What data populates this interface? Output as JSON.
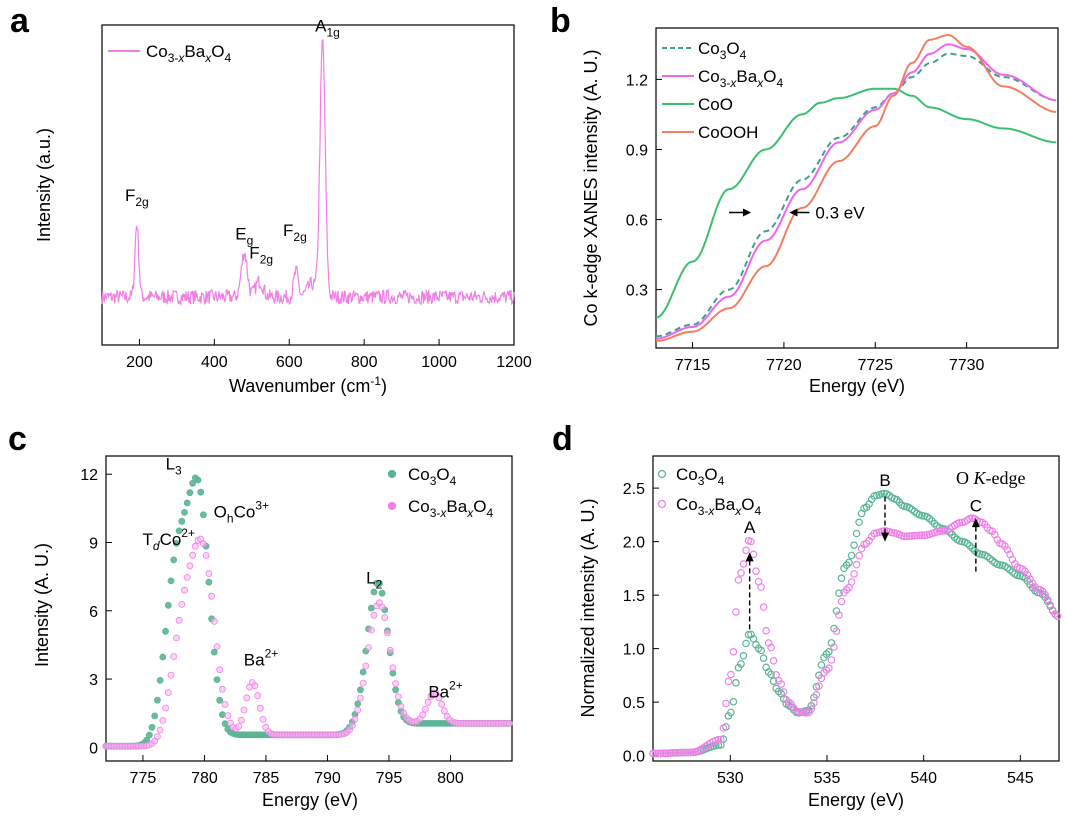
{
  "colors": {
    "green": "#5bb595",
    "pink": "#f080e8",
    "magenta": "#ee66ee",
    "cogreen": "#3cbf70",
    "orange": "#f08060",
    "teal": "#40a090"
  },
  "chart_data": [
    {
      "panel": "a",
      "type": "line",
      "xlabel": "Wavenumber (cm⁻¹)",
      "ylabel": "Intensity (a.u.)",
      "xlim": [
        100,
        1200
      ],
      "ylim": [
        0,
        1
      ],
      "xticks": [
        "200",
        "400",
        "600",
        "800",
        "1000",
        "1200"
      ],
      "legend": [
        "Co3-xBaxO4"
      ],
      "legend_parts": {
        "a": "Co",
        "b": "3-",
        "c": "x",
        "d": "Ba",
        "e": "x",
        "f": "O",
        "g": "4"
      },
      "baseline": 0.15,
      "peaks": [
        {
          "x": 193,
          "h": 0.23,
          "w": 5
        },
        {
          "x": 480,
          "h": 0.14,
          "w": 8
        },
        {
          "x": 520,
          "h": 0.05,
          "w": 10
        },
        {
          "x": 618,
          "h": 0.08,
          "w": 6
        },
        {
          "x": 660,
          "h": 0.04,
          "w": 12
        },
        {
          "x": 689,
          "h": 0.8,
          "w": 7
        }
      ],
      "peak_labels": [
        {
          "main": "F",
          "sub": "2g",
          "x": 193,
          "y": 0.45
        },
        {
          "main": "E",
          "sub": "g",
          "x": 480,
          "y": 0.33
        },
        {
          "main": "F",
          "sub": "2g",
          "x": 525,
          "y": 0.27
        },
        {
          "main": "F",
          "sub": "2g",
          "x": 615,
          "y": 0.34
        },
        {
          "main": "A",
          "sub": "1g",
          "x": 702,
          "y": 0.98
        }
      ]
    },
    {
      "panel": "b",
      "type": "line",
      "xlabel": "Energy (eV)",
      "ylabel": "Co k-edge XANES intensity (A. U.)",
      "xlim": [
        7713,
        7735
      ],
      "ylim": [
        0.05,
        1.42
      ],
      "xticks": [
        "7715",
        "7720",
        "7725",
        "7730"
      ],
      "yticks": [
        "0.3",
        "0.6",
        "0.9",
        "1.2"
      ],
      "series": [
        {
          "name": "Co3O4",
          "legend": {
            "a": "Co",
            "b": "3",
            "c": "O",
            "d": "4"
          },
          "color": "#40a090",
          "dashed": true,
          "x": [
            7713,
            7715,
            7717,
            7719,
            7721,
            7723,
            7725,
            7726,
            7727,
            7728,
            7729,
            7730,
            7732,
            7735
          ],
          "y": [
            0.1,
            0.15,
            0.3,
            0.55,
            0.77,
            0.95,
            1.08,
            1.14,
            1.21,
            1.27,
            1.31,
            1.3,
            1.21,
            1.11
          ]
        },
        {
          "name": "Co3-xBaxO4",
          "legend": {
            "a": "Co",
            "b": "3-",
            "c": "x",
            "d": "Ba",
            "e": "x",
            "f": "O",
            "g": "4"
          },
          "color": "#ee66ee",
          "dashed": false,
          "x": [
            7713,
            7715,
            7717,
            7719,
            7721,
            7723,
            7725,
            7726,
            7727,
            7728,
            7729,
            7730,
            7732,
            7735
          ],
          "y": [
            0.09,
            0.14,
            0.27,
            0.51,
            0.73,
            0.93,
            1.07,
            1.14,
            1.23,
            1.31,
            1.35,
            1.33,
            1.22,
            1.11
          ]
        },
        {
          "name": "CoO",
          "legend": {
            "a": "CoO"
          },
          "color": "#3cbf70",
          "dashed": false,
          "x": [
            7713,
            7715,
            7717,
            7719,
            7721,
            7722,
            7723,
            7725,
            7726,
            7727,
            7728,
            7730,
            7732,
            7735
          ],
          "y": [
            0.18,
            0.42,
            0.73,
            0.9,
            1.05,
            1.1,
            1.12,
            1.16,
            1.16,
            1.13,
            1.08,
            1.03,
            0.99,
            0.93
          ]
        },
        {
          "name": "CoOOH",
          "legend": {
            "a": "CoOOH"
          },
          "color": "#f08060",
          "dashed": false,
          "x": [
            7713,
            7715,
            7717,
            7719,
            7721,
            7723,
            7725,
            7726,
            7727,
            7728,
            7729,
            7730,
            7732,
            7735
          ],
          "y": [
            0.08,
            0.12,
            0.22,
            0.4,
            0.65,
            0.85,
            1.0,
            1.13,
            1.27,
            1.37,
            1.39,
            1.34,
            1.17,
            1.06
          ]
        }
      ],
      "annotation": {
        "text": "0.3 eV",
        "x1": 7718.2,
        "x2": 7720.3,
        "y": 0.63
      }
    },
    {
      "panel": "c",
      "type": "scatter",
      "xlabel": "Energy (eV)",
      "ylabel": "Intensity (A. U.)",
      "xlim": [
        772,
        805
      ],
      "ylim": [
        -0.6,
        12.8
      ],
      "xticks": [
        "775",
        "780",
        "785",
        "790",
        "795",
        "800"
      ],
      "yticks": [
        "0",
        "3",
        "6",
        "9",
        "12"
      ],
      "series": [
        {
          "name": "Co3O4",
          "legend": {
            "a": "Co",
            "b": "3",
            "c": "O",
            "d": "4"
          },
          "color": "#5bb595",
          "base": [
            0.05,
            0.5
          ],
          "base_centers": [
            776.2,
            792.0
          ],
          "base_width": 0.8,
          "peaks": [
            {
              "x": 777.8,
              "h": 7.6,
              "w": 0.95
            },
            {
              "x": 779.6,
              "h": 9.7,
              "w": 0.85
            },
            {
              "x": 794.1,
              "h": 6.2,
              "w": 0.85
            }
          ]
        },
        {
          "name": "Co3-xBaxO4",
          "legend": {
            "a": "Co",
            "b": "3-",
            "c": "x",
            "d": "Ba",
            "e": "x",
            "f": "O",
            "g": "4"
          },
          "color": "#f080e8",
          "base": [
            0.05,
            0.5
          ],
          "base_centers": [
            776.8,
            792.4
          ],
          "base_width": 0.8,
          "peaks": [
            {
              "x": 778.2,
              "h": 4.3,
              "w": 0.9
            },
            {
              "x": 779.9,
              "h": 7.7,
              "w": 0.95
            },
            {
              "x": 783.9,
              "h": 2.3,
              "w": 0.55
            },
            {
              "x": 794.2,
              "h": 5.3,
              "w": 0.9
            },
            {
              "x": 798.7,
              "h": 1.35,
              "w": 0.6
            }
          ]
        }
      ],
      "labels": [
        {
          "text": "L",
          "sub": "3",
          "x": 777.5,
          "y": 12.2
        },
        {
          "text": "T",
          "subi": "d",
          "rest": "Co",
          "sup": "2+",
          "x": 777.1,
          "y": 8.9
        },
        {
          "text": "O",
          "sub": "h",
          "rest": "Co",
          "sup": "3+",
          "x": 783.0,
          "y": 10.1
        },
        {
          "text": "Ba",
          "sup": "2+",
          "x": 784.6,
          "y": 3.6
        },
        {
          "text": "L",
          "sub": "2",
          "x": 793.8,
          "y": 7.2
        },
        {
          "text": "Ba",
          "sup": "2+",
          "x": 799.6,
          "y": 2.2
        }
      ]
    },
    {
      "panel": "d",
      "type": "scatter",
      "xlabel": "Energy (eV)",
      "ylabel": "Normalized intensity (A. U.)",
      "xlim": [
        526,
        547
      ],
      "ylim": [
        -0.05,
        2.8
      ],
      "xticks": [
        "530",
        "535",
        "540",
        "545"
      ],
      "yticks": [
        "0.0",
        "0.5",
        "1.0",
        "1.5",
        "2.0",
        "2.5"
      ],
      "title_text": "O K-edge",
      "title_parts": {
        "a": "O ",
        "b": "K",
        "c": "-edge"
      },
      "series": [
        {
          "name": "Co3O4",
          "legend": {
            "a": "Co",
            "b": "3",
            "c": "O",
            "d": "4"
          },
          "color": "#5bb595",
          "x": [
            526,
            528,
            529.5,
            530,
            530.5,
            531,
            531.5,
            532,
            532.5,
            533,
            533.5,
            534,
            535,
            536,
            537,
            537.5,
            538,
            538.5,
            539,
            540,
            541,
            542,
            543,
            544,
            545,
            546,
            547
          ],
          "y": [
            0.02,
            0.03,
            0.1,
            0.4,
            0.85,
            1.14,
            1.0,
            0.78,
            0.6,
            0.47,
            0.4,
            0.42,
            0.95,
            1.78,
            2.32,
            2.43,
            2.45,
            2.4,
            2.33,
            2.24,
            2.12,
            2.0,
            1.88,
            1.78,
            1.68,
            1.52,
            1.3
          ]
        },
        {
          "name": "Co3-xBaxO4",
          "legend": {
            "a": "Co",
            "b": "3-",
            "c": "x",
            "d": "Ba",
            "e": "x",
            "f": "O",
            "g": "4"
          },
          "color": "#f080e8",
          "x": [
            526,
            528,
            529.5,
            530,
            530.5,
            531,
            531.5,
            532,
            532.5,
            533,
            533.5,
            534,
            535,
            536,
            537,
            537.5,
            538,
            538.5,
            539,
            540,
            541,
            542,
            542.5,
            543,
            543.5,
            544,
            545,
            546,
            547
          ],
          "y": [
            0.02,
            0.03,
            0.15,
            0.75,
            1.7,
            2.02,
            1.62,
            1.05,
            0.7,
            0.5,
            0.41,
            0.4,
            0.8,
            1.55,
            1.98,
            2.08,
            2.1,
            2.08,
            2.05,
            2.06,
            2.1,
            2.18,
            2.22,
            2.18,
            2.1,
            1.98,
            1.75,
            1.55,
            1.3
          ]
        }
      ],
      "labels": [
        {
          "text": "A",
          "x": 531.0
        },
        {
          "text": "B",
          "x": 538.0
        },
        {
          "text": "C",
          "x": 542.7
        }
      ],
      "arrows": [
        {
          "x": 531.0,
          "from": 1.18,
          "to": 1.9
        },
        {
          "x": 538.0,
          "from": 2.42,
          "to": 2.0
        },
        {
          "x": 542.7,
          "from": 1.72,
          "to": 2.22
        }
      ]
    }
  ]
}
